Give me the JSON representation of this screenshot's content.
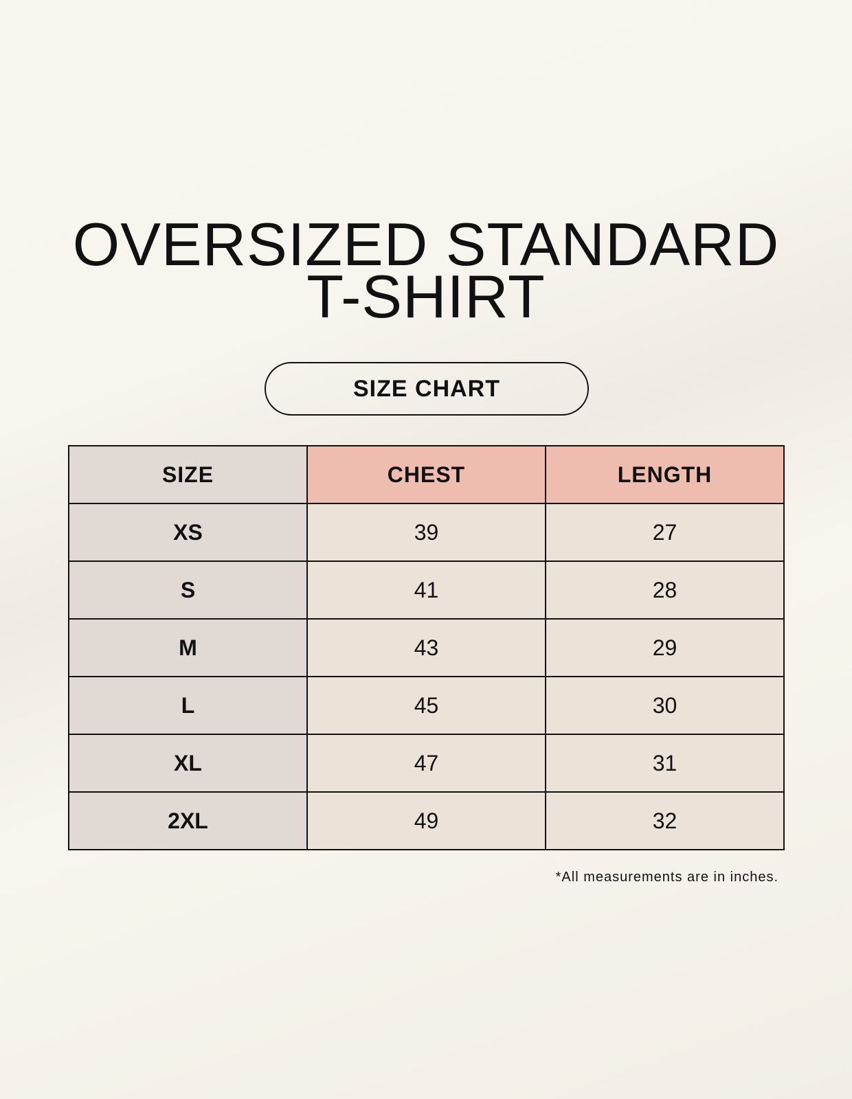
{
  "title_lines": [
    "OVERSIZED STANDARD",
    "T-SHIRT"
  ],
  "badge": "SIZE CHART",
  "table": {
    "headers": [
      "SIZE",
      "CHEST",
      "LENGTH"
    ],
    "rows": [
      [
        "XS",
        "39",
        "27"
      ],
      [
        "S",
        "41",
        "28"
      ],
      [
        "M",
        "43",
        "29"
      ],
      [
        "L",
        "45",
        "30"
      ],
      [
        "XL",
        "47",
        "31"
      ],
      [
        "2XL",
        "49",
        "32"
      ]
    ]
  },
  "footnote": "*All measurements are in inches.",
  "colors": {
    "size_column": "#e1d9d4",
    "measure_header": "#eebdb0",
    "value_cell": "#ebe3d8"
  }
}
